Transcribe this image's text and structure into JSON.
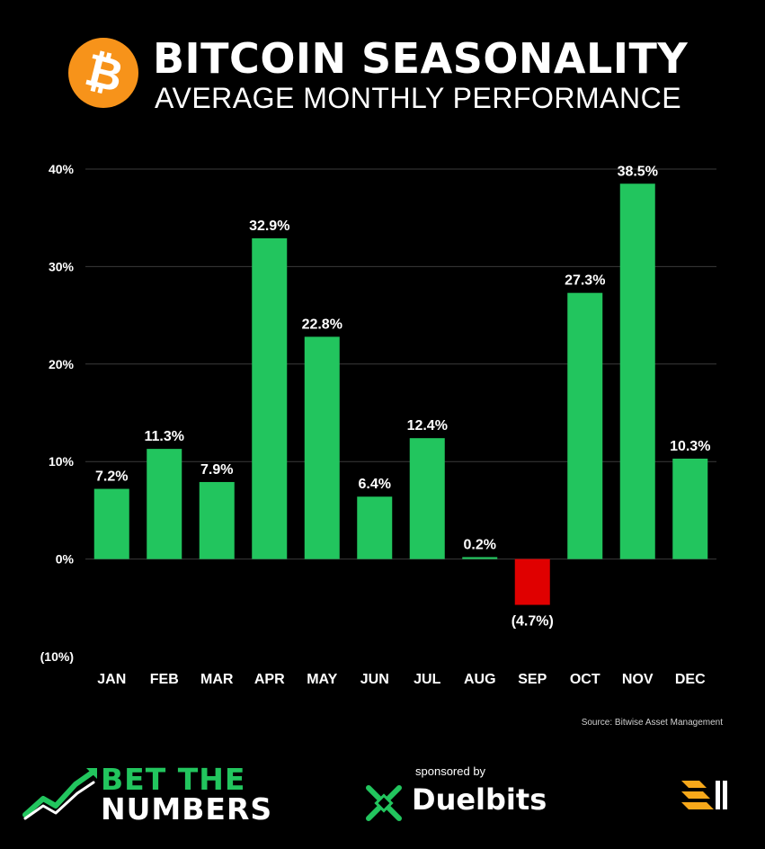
{
  "header": {
    "title": "BITCOIN SEASONALITY",
    "subtitle": "AVERAGE MONTHLY PERFORMANCE",
    "logo_symbol": "₿"
  },
  "colors": {
    "background": "#000000",
    "positive": "#22c55e",
    "negative": "#e00000",
    "bitcoin_orange": "#f7931a",
    "grid": "#3a3a3a"
  },
  "chart_data": {
    "type": "bar",
    "title": "",
    "xlabel": "",
    "ylabel": "",
    "ylim": [
      -10,
      40
    ],
    "yticks": [
      -10,
      0,
      10,
      20,
      30,
      40
    ],
    "ytick_labels": [
      "(10%)",
      "0%",
      "10%",
      "20%",
      "30%",
      "40%"
    ],
    "grid": true,
    "categories": [
      "JAN",
      "FEB",
      "MAR",
      "APR",
      "MAY",
      "JUN",
      "JUL",
      "AUG",
      "SEP",
      "OCT",
      "NOV",
      "DEC"
    ],
    "values": [
      7.2,
      11.3,
      7.9,
      32.9,
      22.8,
      6.4,
      12.4,
      0.2,
      -4.7,
      27.3,
      38.5,
      10.3
    ],
    "data_labels": [
      "7.2%",
      "11.3%",
      "7.9%",
      "32.9%",
      "22.8%",
      "6.4%",
      "12.4%",
      "0.2%",
      "(4.7%)",
      "27.3%",
      "38.5%",
      "10.3%"
    ]
  },
  "source": "Source: Bitwise Asset Management",
  "footer": {
    "brand_line1": "BET THE",
    "brand_line2": "NUMBERS",
    "sponsor_label": "sponsored by",
    "sponsor_name": "Duelbits"
  }
}
